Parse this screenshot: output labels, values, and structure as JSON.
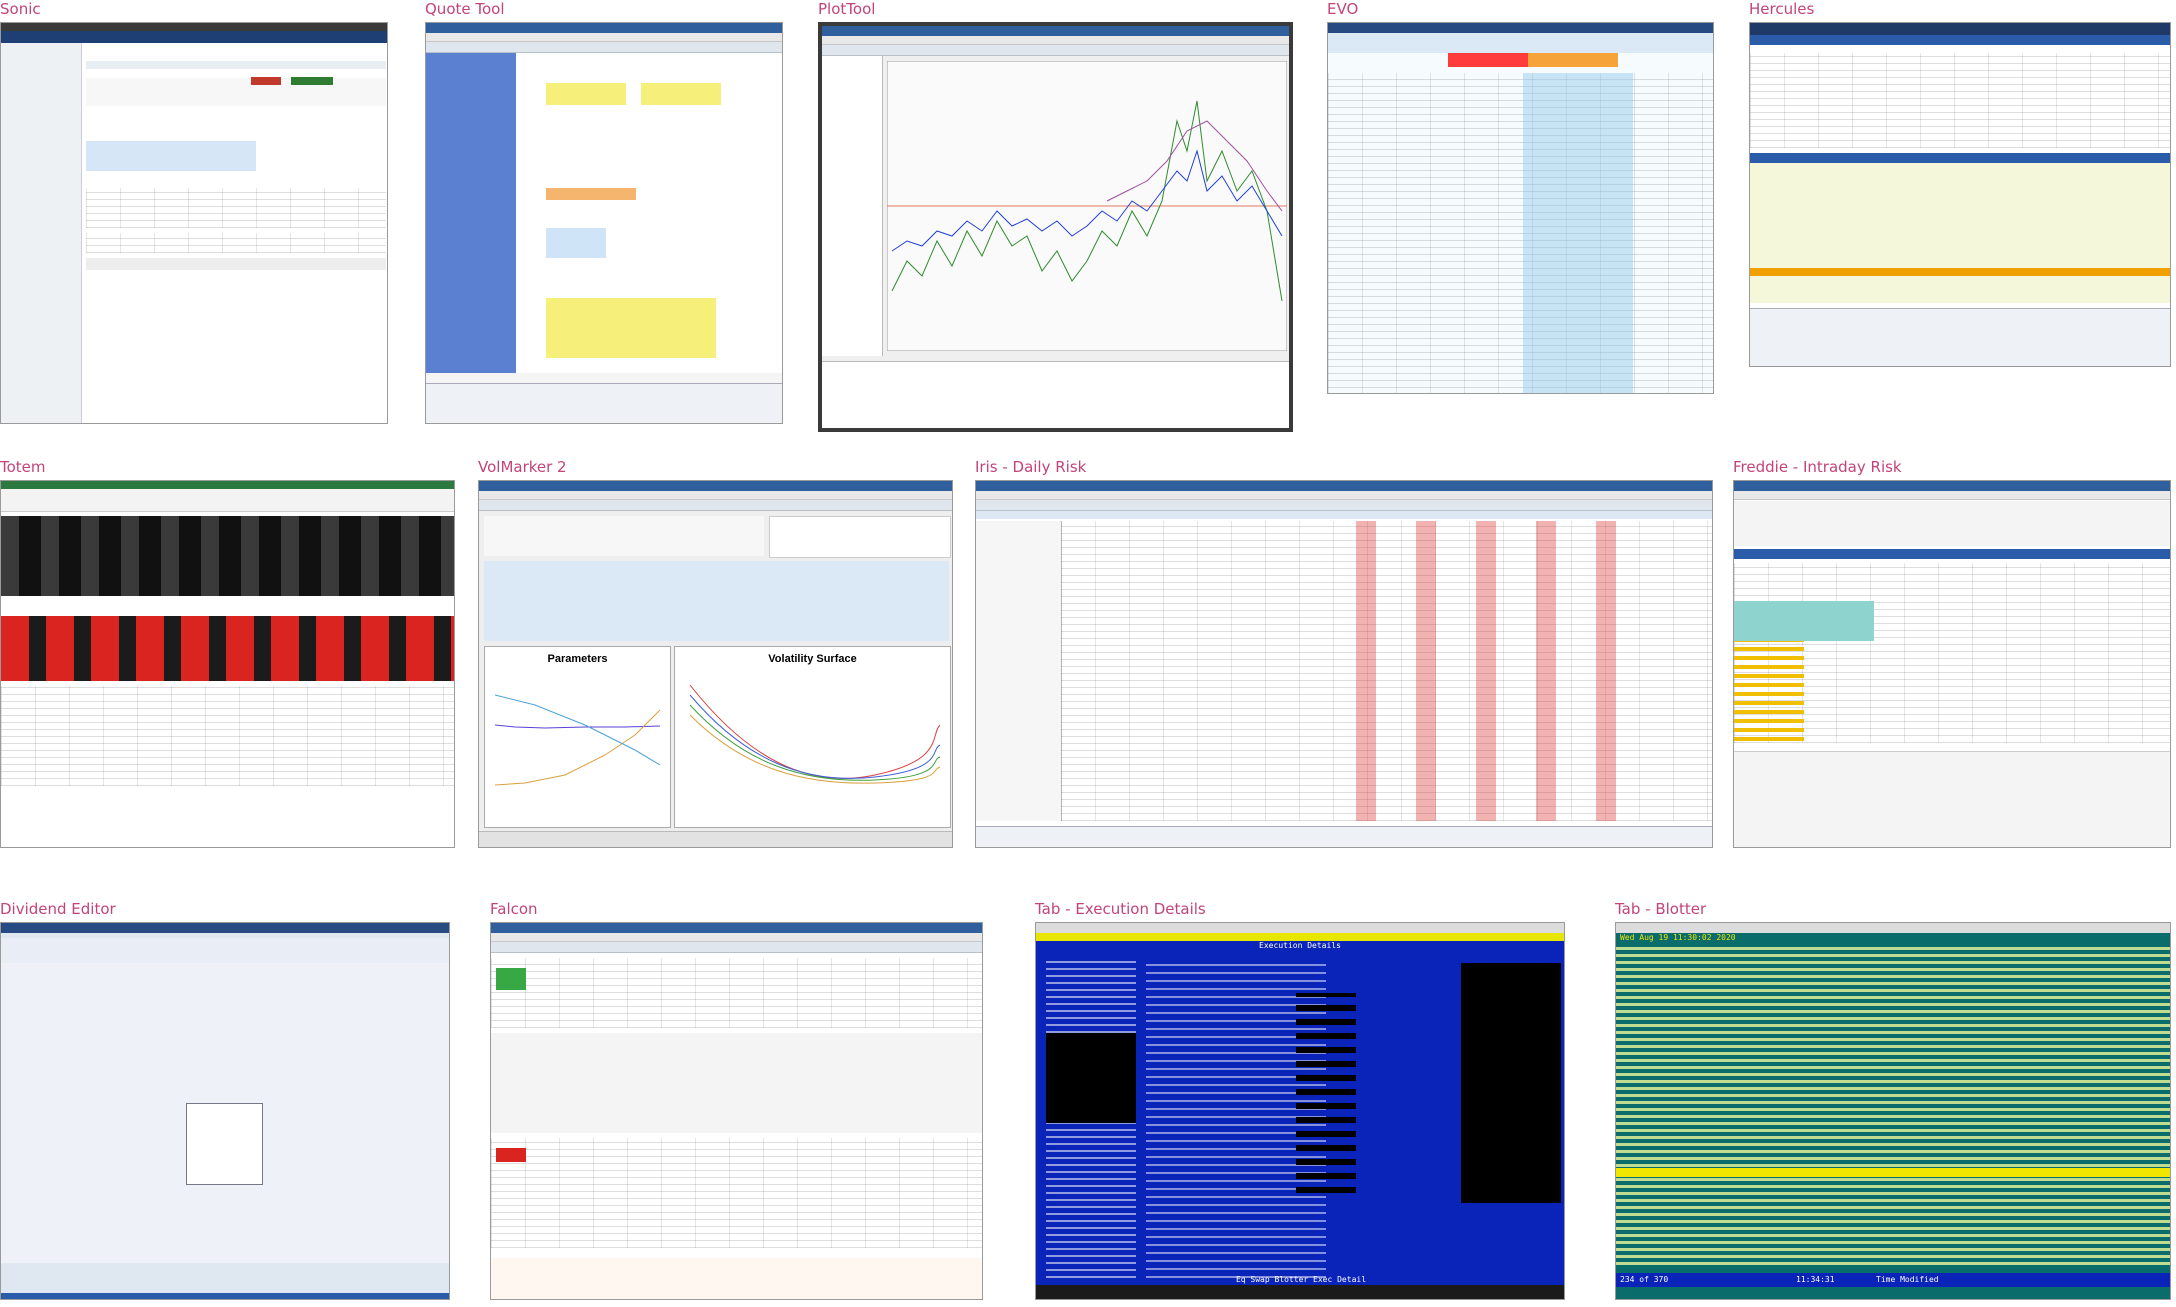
{
  "tiles": [
    {
      "id": "sonic",
      "title": "Sonic"
    },
    {
      "id": "quote-tool",
      "title": "Quote Tool"
    },
    {
      "id": "plottool",
      "title": "PlotTool"
    },
    {
      "id": "evo",
      "title": "EVO"
    },
    {
      "id": "hercules",
      "title": "Hercules"
    },
    {
      "id": "totem",
      "title": "Totem"
    },
    {
      "id": "volmarker",
      "title": "VolMarker 2"
    },
    {
      "id": "iris",
      "title": "Iris - Daily Risk"
    },
    {
      "id": "freddie",
      "title": "Freddie - Intraday Risk"
    },
    {
      "id": "dividend",
      "title": "Dividend Editor"
    },
    {
      "id": "falcon",
      "title": "Falcon"
    },
    {
      "id": "tab-exec",
      "title": "Tab - Execution Details"
    },
    {
      "id": "tab-blotter",
      "title": "Tab - Blotter"
    }
  ],
  "volmarker": {
    "parameters_title": "Parameters",
    "surface_title": "Volatility Surface"
  },
  "tab_exec": {
    "banner": "Execution Details",
    "footer": "Eq Swap Blotter Exec Detail"
  },
  "tab_blotter": {
    "header": "Wed Aug 19 11:30:02 2020",
    "status": "234 of 370",
    "time": "11:34:31",
    "modified": "Time Modified"
  },
  "colors": {
    "title": "#c2447a",
    "tab_blue": "#0a23b8",
    "tab_teal": "#0b6c6c",
    "highlight_yellow": "#f0e600"
  }
}
